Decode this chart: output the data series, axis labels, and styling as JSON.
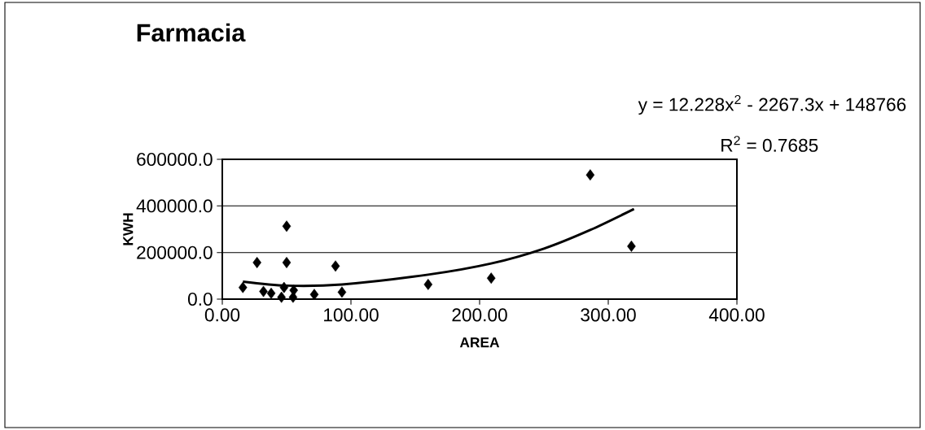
{
  "chart_data": {
    "type": "scatter",
    "title": "Farmacia",
    "xlabel": "AREA",
    "ylabel": "KWH",
    "annotations": [
      "y = 12.228x$^{2}$ - 2267.3x + 148766",
      "R$^{2}$ = 0.7685"
    ],
    "xlim": [
      0,
      400
    ],
    "ylim": [
      0,
      600000
    ],
    "xticks": [
      {
        "value": 0,
        "label": "0.00"
      },
      {
        "value": 100,
        "label": "100.00"
      },
      {
        "value": 200,
        "label": "200.00"
      },
      {
        "value": 300,
        "label": "300.00"
      },
      {
        "value": 400,
        "label": "400.00"
      }
    ],
    "yticks": [
      {
        "value": 0,
        "label": "0.0"
      },
      {
        "value": 200000,
        "label": "200000.0"
      },
      {
        "value": 400000,
        "label": "400000.0"
      },
      {
        "value": 600000,
        "label": "600000.0"
      }
    ],
    "grid": "y",
    "marker": "diamond",
    "series": [
      {
        "color": "#000000",
        "x": [
          16,
          27,
          50,
          50,
          88,
          93,
          71.5,
          32,
          38,
          48,
          46,
          55,
          55.5,
          160,
          209,
          286,
          318
        ],
        "values": [
          50000,
          157000,
          313000,
          157000,
          142000,
          30000,
          20000,
          33000,
          25000,
          50000,
          8000,
          8000,
          38000,
          63000,
          90000,
          533000,
          227000
        ]
      },
      {
        "type": "line",
        "color": "#000000",
        "marker": "none",
        "x": [
          16,
          50,
          93,
          160,
          209,
          250,
          286,
          320
        ],
        "values": [
          75000,
          58000,
          63000,
          105000,
          153000,
          217000,
          297000,
          387000
        ]
      }
    ]
  }
}
